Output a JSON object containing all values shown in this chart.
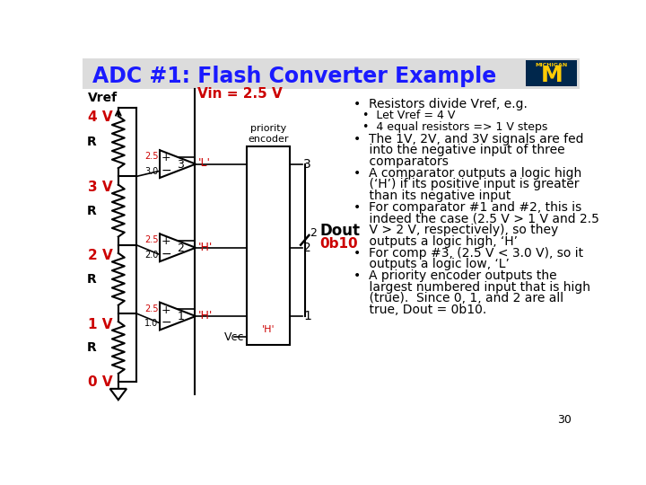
{
  "title": "ADC #1: Flash Converter Example",
  "title_color": "#1a1aff",
  "vin_label": "Vin = 2.5 V",
  "vref_label": "Vref",
  "vref_value": "4 V",
  "v0": "0 V",
  "v1": "1 V",
  "v2": "2 V",
  "v3": "3 V",
  "dout_label": "Dout",
  "dout_value": "0b10",
  "vcc_label": "Vcc",
  "comparator_labels": [
    "L",
    "H",
    "H"
  ],
  "comparator_outputs": [
    "3",
    "2",
    "1"
  ],
  "comparator_neg_voltages": [
    "3.0",
    "2.0",
    "1.0"
  ],
  "comparator_pos_voltage": "2.5",
  "page_number": "30",
  "right_text": [
    [
      0,
      "•  Resistors divide Vref, e.g.",
      10
    ],
    [
      1,
      "•  Let Vref = 4 V",
      9
    ],
    [
      1,
      "•  4 equal resistors => 1 V steps",
      9
    ],
    [
      0,
      "•  The 1V, 2V, and 3V signals are fed",
      10
    ],
    [
      0,
      "    into the negative input of three",
      10
    ],
    [
      0,
      "    comparators",
      10
    ],
    [
      0,
      "•  A comparator outputs a logic high",
      10
    ],
    [
      0,
      "    (‘H’) if its positive input is greater",
      10
    ],
    [
      0,
      "    than its negative input",
      10
    ],
    [
      0,
      "•  For comparator #1 and #2, this is",
      10
    ],
    [
      0,
      "    indeed the case (2.5 V > 1 V and 2.5",
      10
    ],
    [
      0,
      "    V > 2 V, respectively), so they",
      10
    ],
    [
      0,
      "    outputs a logic high, ‘H’",
      10
    ],
    [
      0,
      "•  For comp #3, (2.5 V < 3.0 V), so it",
      10
    ],
    [
      0,
      "    outputs a logic low, ‘L’",
      10
    ],
    [
      0,
      "•  A priority encoder outputs the",
      10
    ],
    [
      0,
      "    largest numbered input that is high",
      10
    ],
    [
      0,
      "    (true).  Since 0, 1, and 2 are all",
      10
    ],
    [
      0,
      "    true, Dout = 0b10.",
      10
    ]
  ]
}
